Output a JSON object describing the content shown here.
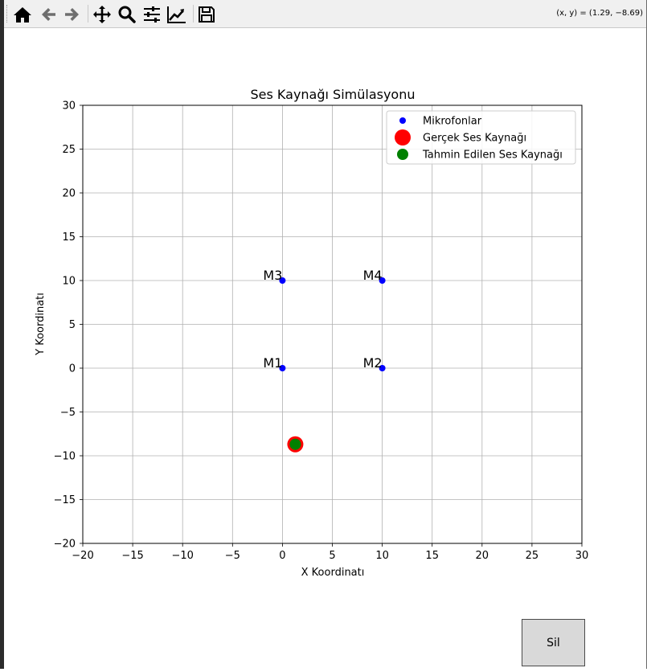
{
  "toolbar": {
    "icons": [
      "home-icon",
      "back-arrow-icon",
      "forward-arrow-icon",
      "pan-move-icon",
      "zoom-magnifier-icon",
      "configure-subplots-icon",
      "edit-axis-icon",
      "save-floppy-icon"
    ],
    "coord_readout": "(x, y) = (1.29, −8.69)"
  },
  "chart_data": {
    "type": "scatter",
    "title": "Ses Kaynağı Simülasyonu",
    "xlabel": "X Koordinatı",
    "ylabel": "Y Koordinatı",
    "xlim": [
      -20,
      30
    ],
    "ylim": [
      -20,
      30
    ],
    "xticks": [
      "−20",
      "−15",
      "−10",
      "−5",
      "0",
      "5",
      "10",
      "15",
      "20",
      "25",
      "30"
    ],
    "yticks": [
      "30",
      "25",
      "20",
      "15",
      "10",
      "5",
      "0",
      "−5",
      "−10",
      "−15",
      "−20"
    ],
    "grid": true,
    "legend_position": "upper right",
    "series": [
      {
        "name": "Mikrofonlar",
        "color": "#0000ff",
        "points": [
          {
            "x": 0,
            "y": 0,
            "label": "M1"
          },
          {
            "x": 10,
            "y": 0,
            "label": "M2"
          },
          {
            "x": 0,
            "y": 10,
            "label": "M3"
          },
          {
            "x": 10,
            "y": 10,
            "label": "M4"
          }
        ]
      },
      {
        "name": "Gerçek Ses Kaynağı",
        "color": "#ff0000",
        "points": [
          {
            "x": 1.29,
            "y": -8.69
          }
        ]
      },
      {
        "name": "Tahmin Edilen Ses Kaynağı",
        "color": "#008000",
        "points": [
          {
            "x": 1.29,
            "y": -8.69
          }
        ]
      }
    ]
  },
  "buttons": {
    "delete_label": "Sil"
  }
}
